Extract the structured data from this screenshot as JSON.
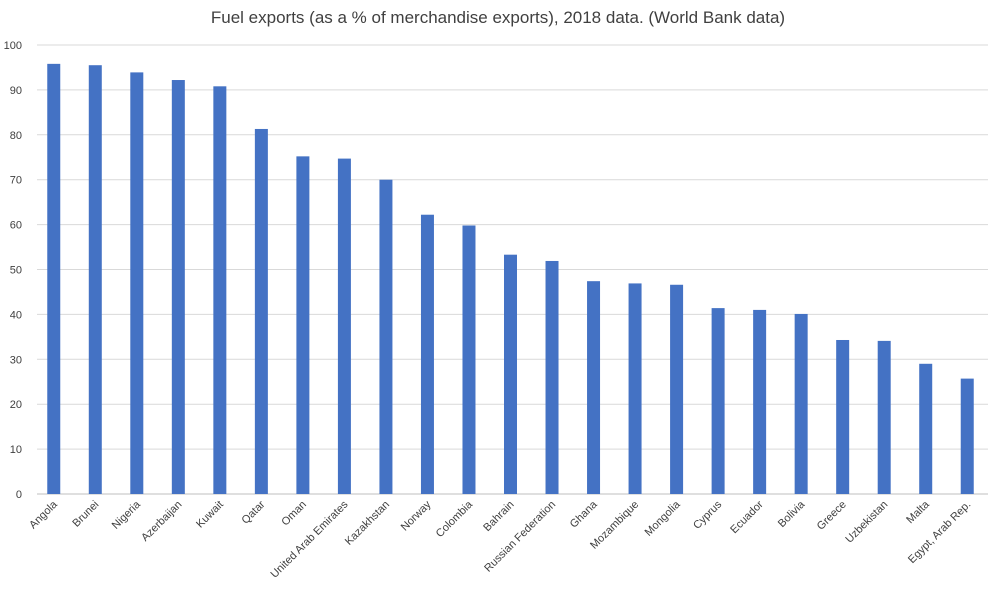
{
  "chart_data": {
    "type": "bar",
    "title": "Fuel exports (as a % of merchandise exports), 2018 data. (World Bank data)",
    "xlabel": "",
    "ylabel": "",
    "ylim": [
      0,
      100
    ],
    "yticks": [
      0,
      10,
      20,
      30,
      40,
      50,
      60,
      70,
      80,
      90,
      100
    ],
    "grid": true,
    "bar_color": "#4472c4",
    "categories": [
      "Angola",
      "Brunei",
      "Nigeria",
      "Azerbaijan",
      "Kuwait",
      "Qatar",
      "Oman",
      "United Arab Emirates",
      "Kazakhstan",
      "Norway",
      "Colombia",
      "Bahrain",
      "Russian Federation",
      "Ghana",
      "Mozambique",
      "Mongolia",
      "Cyprus",
      "Ecuador",
      "Bolivia",
      "Greece",
      "Uzbekistan",
      "Malta",
      "Egypt, Arab Rep."
    ],
    "values": [
      95.8,
      95.5,
      93.9,
      92.2,
      90.8,
      81.3,
      75.2,
      74.7,
      70.0,
      62.2,
      59.8,
      53.3,
      51.9,
      47.4,
      46.9,
      46.6,
      41.4,
      41.0,
      40.1,
      34.3,
      34.1,
      29.0,
      25.7
    ]
  }
}
